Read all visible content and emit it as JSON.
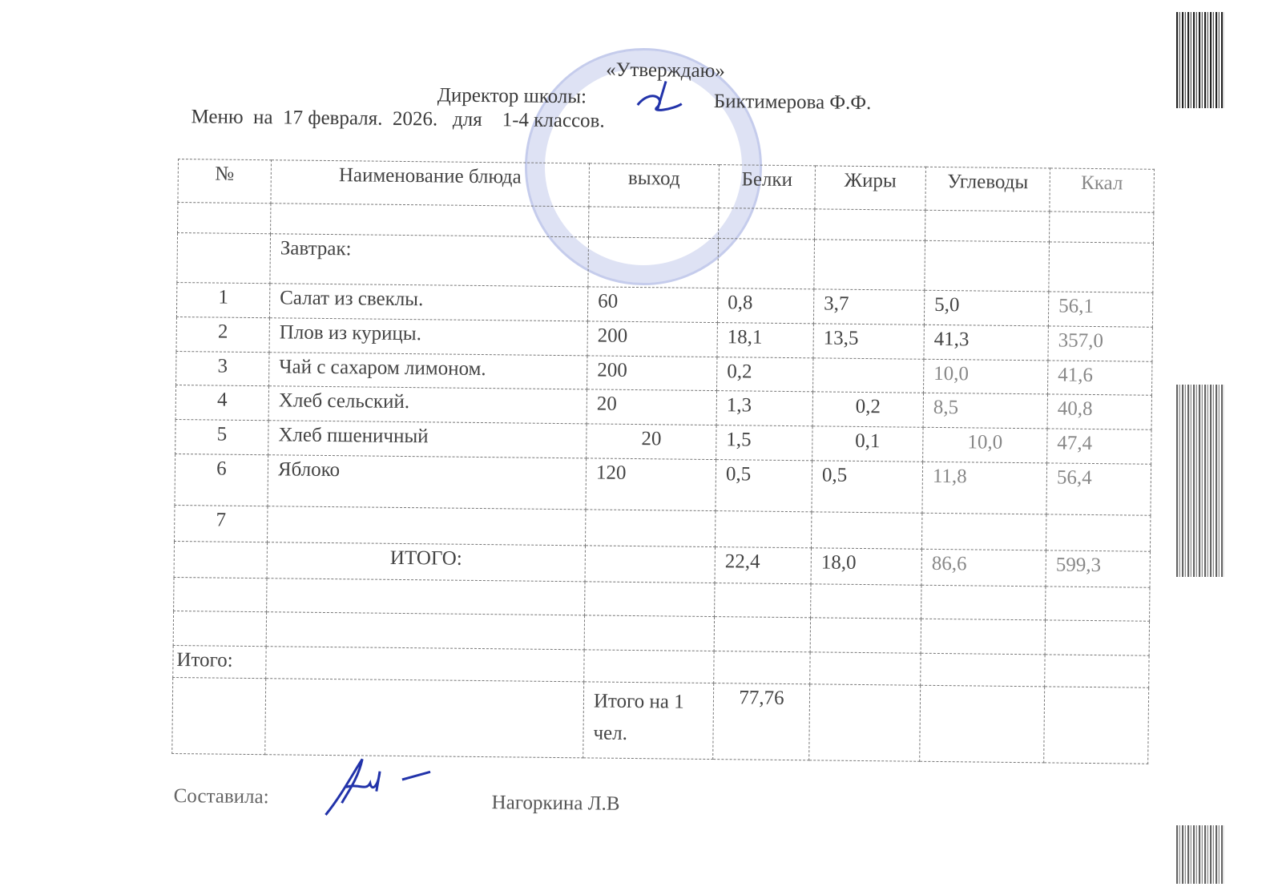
{
  "approval": {
    "stamp_title": "«Утверждаю»",
    "director_label": "Директор школы:",
    "director_name": "Биктимерова Ф.Ф."
  },
  "title": "Меню  на  17 февраля.  2026.   для    1-4 классов.",
  "table": {
    "headers": [
      "№",
      "Наименование блюда",
      "выход",
      "Белки",
      "Жиры",
      "Углеводы",
      "Ккал"
    ],
    "section": "Завтрак:",
    "rows": [
      {
        "num": "1",
        "name": "Салат из свеклы.",
        "output": "60",
        "protein": "0,8",
        "fat": "3,7",
        "carbs": "5,0",
        "kcal": "56,1"
      },
      {
        "num": "2",
        "name": "Плов из курицы.",
        "output": "200",
        "protein": "18,1",
        "fat": "13,5",
        "carbs": "41,3",
        "kcal": "357,0"
      },
      {
        "num": "3",
        "name": "Чай с сахаром лимоном.",
        "output": "200",
        "protein": "0,2",
        "fat": "",
        "carbs": "10,0",
        "kcal": "41,6"
      },
      {
        "num": "4",
        "name": "Хлеб сельский.",
        "output": "20",
        "protein": "1,3",
        "fat": "0,2",
        "carbs": "8,5",
        "kcal": "40,8"
      },
      {
        "num": "5",
        "name": "Хлеб пшеничный",
        "output": "20",
        "protein": "1,5",
        "fat": "0,1",
        "carbs": "10,0",
        "kcal": "47,4"
      },
      {
        "num": "6",
        "name": "Яблоко",
        "output": "120",
        "protein": "0,5",
        "fat": "0,5",
        "carbs": "11,8",
        "kcal": "56,4"
      },
      {
        "num": "7",
        "name": "",
        "output": "",
        "protein": "",
        "fat": "",
        "carbs": "",
        "kcal": ""
      }
    ],
    "total": {
      "label": "ИТОГО:",
      "protein": "22,4",
      "fat": "18,0",
      "carbs": "86,6",
      "kcal": "599,3"
    },
    "itogo_label": "Итого:",
    "per_person_label": "Итого на 1 чел.",
    "per_person_value": "77,76"
  },
  "footer": {
    "compiled_label": "Составила:",
    "compiled_name": "Нагоркина Л.В"
  },
  "colors": {
    "ink": "#3a3a3a",
    "signature": "#2233aa",
    "stamp": "#5a6ec8"
  }
}
